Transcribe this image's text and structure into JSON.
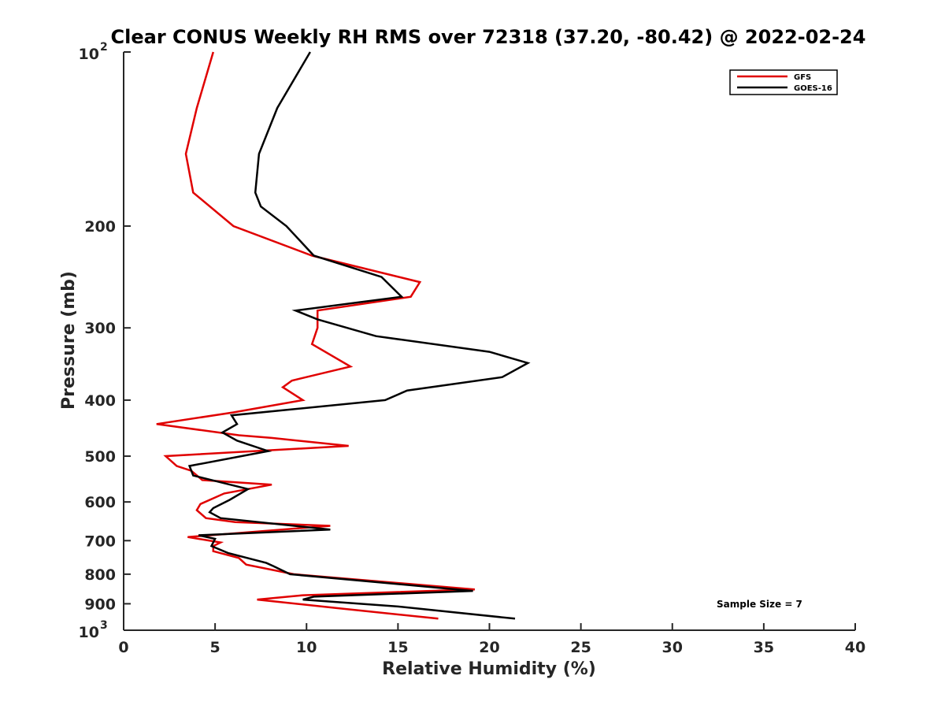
{
  "chart_data": {
    "type": "line",
    "title": "Clear CONUS Weekly RH RMS over 72318 (37.20, -80.42) @ 2022-02-24",
    "xlabel": "Relative Humidity (%)",
    "ylabel": "Pressure (mb)",
    "xlim": [
      0,
      40
    ],
    "ylim": [
      100,
      1000
    ],
    "yscale": "log",
    "y_reversed": true,
    "xticks": [
      0,
      5,
      10,
      15,
      20,
      25,
      30,
      35,
      40
    ],
    "yticks": [
      {
        "value": 100,
        "base": "10",
        "exp": "2"
      },
      {
        "value": 200,
        "label": "200"
      },
      {
        "value": 300,
        "label": "300"
      },
      {
        "value": 400,
        "label": "400"
      },
      {
        "value": 500,
        "label": "500"
      },
      {
        "value": 600,
        "label": "600"
      },
      {
        "value": 700,
        "label": "700"
      },
      {
        "value": 800,
        "label": "800"
      },
      {
        "value": 900,
        "label": "900"
      },
      {
        "value": 1000,
        "base": "10",
        "exp": "3"
      }
    ],
    "grid": false,
    "legend_position": "top-right",
    "annotation": "Sample Size = 7",
    "series": [
      {
        "name": "GFS",
        "color": "#e00000",
        "points": [
          [
            4.9,
            100
          ],
          [
            4.0,
            125
          ],
          [
            3.4,
            150
          ],
          [
            3.8,
            175
          ],
          [
            6.0,
            200
          ],
          [
            10.3,
            225
          ],
          [
            16.2,
            250
          ],
          [
            15.7,
            265
          ],
          [
            10.6,
            280
          ],
          [
            10.6,
            300
          ],
          [
            10.3,
            320
          ],
          [
            12.4,
            350
          ],
          [
            9.2,
            370
          ],
          [
            8.7,
            380
          ],
          [
            9.8,
            400
          ],
          [
            6.0,
            420
          ],
          [
            1.8,
            440
          ],
          [
            6.3,
            460
          ],
          [
            8.1,
            465
          ],
          [
            12.3,
            480
          ],
          [
            2.3,
            500
          ],
          [
            2.9,
            520
          ],
          [
            3.7,
            530
          ],
          [
            4.3,
            550
          ],
          [
            8.1,
            560
          ],
          [
            5.5,
            580
          ],
          [
            4.2,
            605
          ],
          [
            4.0,
            620
          ],
          [
            4.5,
            640
          ],
          [
            6.1,
            650
          ],
          [
            11.3,
            660
          ],
          [
            3.5,
            690
          ],
          [
            5.3,
            705
          ],
          [
            4.9,
            715
          ],
          [
            4.9,
            730
          ],
          [
            6.3,
            750
          ],
          [
            6.7,
            770
          ],
          [
            9.3,
            800
          ],
          [
            19.2,
            850
          ],
          [
            9.8,
            870
          ],
          [
            7.3,
            885
          ],
          [
            11.6,
            915
          ],
          [
            17.2,
            955
          ]
        ]
      },
      {
        "name": "GOES-16",
        "color": "#000000",
        "points": [
          [
            10.2,
            100
          ],
          [
            8.4,
            125
          ],
          [
            7.4,
            150
          ],
          [
            7.2,
            175
          ],
          [
            7.5,
            185
          ],
          [
            8.9,
            200
          ],
          [
            10.4,
            225
          ],
          [
            14.1,
            245
          ],
          [
            15.2,
            265
          ],
          [
            9.4,
            280
          ],
          [
            10.6,
            290
          ],
          [
            13.8,
            310
          ],
          [
            20.0,
            330
          ],
          [
            22.1,
            345
          ],
          [
            20.7,
            365
          ],
          [
            15.5,
            385
          ],
          [
            14.3,
            400
          ],
          [
            5.9,
            425
          ],
          [
            6.2,
            440
          ],
          [
            5.4,
            455
          ],
          [
            6.2,
            470
          ],
          [
            7.9,
            490
          ],
          [
            3.6,
            520
          ],
          [
            3.8,
            540
          ],
          [
            6.8,
            570
          ],
          [
            5.8,
            595
          ],
          [
            4.9,
            615
          ],
          [
            4.7,
            625
          ],
          [
            5.3,
            640
          ],
          [
            11.3,
            670
          ],
          [
            4.1,
            685
          ],
          [
            5.0,
            695
          ],
          [
            4.8,
            715
          ],
          [
            5.7,
            735
          ],
          [
            7.8,
            765
          ],
          [
            8.2,
            775
          ],
          [
            9.1,
            800
          ],
          [
            19.1,
            855
          ],
          [
            10.4,
            875
          ],
          [
            9.8,
            885
          ],
          [
            15.0,
            910
          ],
          [
            21.4,
            955
          ]
        ]
      }
    ]
  }
}
